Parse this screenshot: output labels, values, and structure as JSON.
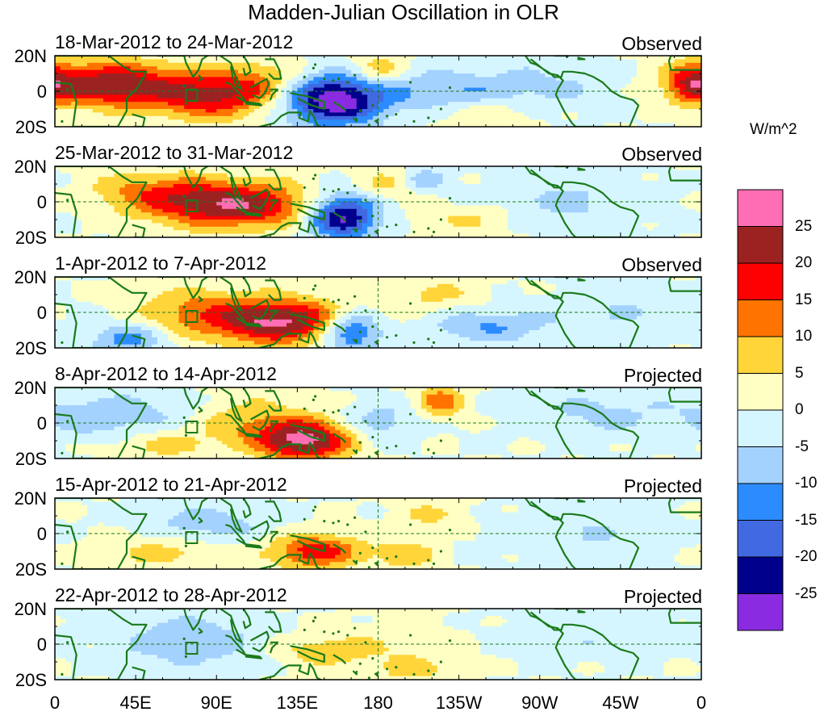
{
  "figure": {
    "title": "Madden-Julian Oscillation in OLR",
    "units": "W/m^2"
  },
  "colors": {
    "land_outline": "#1a7a1a",
    "zero_line": "#1a7a1a"
  },
  "chart_data": {
    "type": "heatmap",
    "title": "Madden-Julian Oscillation in OLR",
    "x_tick_labels": [
      "0",
      "45E",
      "90E",
      "135E",
      "180",
      "135W",
      "90W",
      "45W",
      "0"
    ],
    "y_tick_labels": [
      "20N",
      "0",
      "20S"
    ],
    "xlim_degrees_east": [
      0,
      360
    ],
    "ylim_degrees": [
      -20,
      20
    ],
    "colorbar": {
      "labels": [
        "25",
        "20",
        "15",
        "10",
        "5",
        "0",
        "-5",
        "-10",
        "-15",
        "-20",
        "-25"
      ],
      "colors": [
        "#ff6eb4",
        "#9c2222",
        "#ff0000",
        "#ff7300",
        "#ffd53a",
        "#ffffc4",
        "#d6f6ff",
        "#a4d2ff",
        "#2c8cff",
        "#4169e1",
        "#00008c",
        "#8a2be2"
      ]
    },
    "panels": [
      {
        "date_range": "18-Mar-2012 to 24-Mar-2012",
        "status": "Observed",
        "anomalies": [
          {
            "lon": 30,
            "lat": 4,
            "amp": 24,
            "slon": 28,
            "slat": 9
          },
          {
            "lon": 85,
            "lat": -3,
            "amp": 18,
            "slon": 22,
            "slat": 9
          },
          {
            "lon": 115,
            "lat": 4,
            "amp": 10,
            "slon": 18,
            "slat": 10
          },
          {
            "lon": 155,
            "lat": -5,
            "amp": -30,
            "slon": 20,
            "slat": 10
          },
          {
            "lon": 180,
            "lat": 12,
            "amp": 10,
            "slon": 10,
            "slat": 6
          },
          {
            "lon": 215,
            "lat": 0,
            "amp": -9,
            "slon": 25,
            "slat": 8
          },
          {
            "lon": 270,
            "lat": 2,
            "amp": -6,
            "slon": 30,
            "slat": 10
          },
          {
            "lon": 355,
            "lat": 5,
            "amp": 14,
            "slon": 10,
            "slat": 8
          },
          {
            "lon": 240,
            "lat": -12,
            "amp": 6,
            "slon": 20,
            "slat": 6
          }
        ]
      },
      {
        "date_range": "25-Mar-2012 to 31-Mar-2012",
        "status": "Observed",
        "anomalies": [
          {
            "lon": 100,
            "lat": -2,
            "amp": 24,
            "slon": 32,
            "slat": 9
          },
          {
            "lon": 55,
            "lat": 6,
            "amp": 10,
            "slon": 25,
            "slat": 8
          },
          {
            "lon": 160,
            "lat": -8,
            "amp": -28,
            "slon": 14,
            "slat": 9
          },
          {
            "lon": 190,
            "lat": 10,
            "amp": 8,
            "slon": 15,
            "slat": 6
          },
          {
            "lon": 205,
            "lat": 12,
            "amp": -12,
            "slon": 10,
            "slat": 5
          },
          {
            "lon": 290,
            "lat": 0,
            "amp": -6,
            "slon": 35,
            "slat": 10
          },
          {
            "lon": 230,
            "lat": -10,
            "amp": 6,
            "slon": 20,
            "slat": 6
          }
        ]
      },
      {
        "date_range": "1-Apr-2012 to 7-Apr-2012",
        "status": "Observed",
        "anomalies": [
          {
            "lon": 125,
            "lat": -5,
            "amp": 26,
            "slon": 30,
            "slat": 9
          },
          {
            "lon": 75,
            "lat": 2,
            "amp": 8,
            "slon": 22,
            "slat": 9
          },
          {
            "lon": 40,
            "lat": -15,
            "amp": -12,
            "slon": 15,
            "slat": 6
          },
          {
            "lon": 165,
            "lat": -10,
            "amp": -22,
            "slon": 12,
            "slat": 8
          },
          {
            "lon": 210,
            "lat": 10,
            "amp": 6,
            "slon": 20,
            "slat": 7
          },
          {
            "lon": 240,
            "lat": -8,
            "amp": -10,
            "slon": 25,
            "slat": 7
          },
          {
            "lon": 310,
            "lat": 0,
            "amp": -5,
            "slon": 25,
            "slat": 10
          }
        ]
      },
      {
        "date_range": "8-Apr-2012 to 14-Apr-2012",
        "status": "Projected",
        "anomalies": [
          {
            "lon": 140,
            "lat": -10,
            "amp": 26,
            "slon": 18,
            "slat": 8
          },
          {
            "lon": 110,
            "lat": 0,
            "amp": 9,
            "slon": 22,
            "slat": 10
          },
          {
            "lon": 30,
            "lat": 4,
            "amp": -9,
            "slon": 30,
            "slat": 9
          },
          {
            "lon": 215,
            "lat": 12,
            "amp": 14,
            "slon": 9,
            "slat": 6
          },
          {
            "lon": 60,
            "lat": -12,
            "amp": 7,
            "slon": 20,
            "slat": 6
          },
          {
            "lon": 180,
            "lat": 0,
            "amp": -8,
            "slon": 15,
            "slat": 8
          },
          {
            "lon": 300,
            "lat": 5,
            "amp": -6,
            "slon": 30,
            "slat": 10
          }
        ]
      },
      {
        "date_range": "15-Apr-2012 to 21-Apr-2012",
        "status": "Projected",
        "anomalies": [
          {
            "lon": 145,
            "lat": -10,
            "amp": 18,
            "slon": 18,
            "slat": 7
          },
          {
            "lon": 60,
            "lat": -10,
            "amp": 7,
            "slon": 25,
            "slat": 7
          },
          {
            "lon": 85,
            "lat": 5,
            "amp": -8,
            "slon": 25,
            "slat": 8
          },
          {
            "lon": 195,
            "lat": -12,
            "amp": 9,
            "slon": 12,
            "slat": 6
          },
          {
            "lon": 210,
            "lat": 10,
            "amp": 6,
            "slon": 15,
            "slat": 6
          },
          {
            "lon": 290,
            "lat": 0,
            "amp": -5,
            "slon": 35,
            "slat": 10
          }
        ]
      },
      {
        "date_range": "22-Apr-2012 to 28-Apr-2012",
        "status": "Projected",
        "anomalies": [
          {
            "lon": 75,
            "lat": 2,
            "amp": -10,
            "slon": 25,
            "slat": 10
          },
          {
            "lon": 150,
            "lat": -4,
            "amp": 8,
            "slon": 18,
            "slat": 6
          },
          {
            "lon": 195,
            "lat": 0,
            "amp": 4,
            "slon": 25,
            "slat": 10
          },
          {
            "lon": 200,
            "lat": -15,
            "amp": 6,
            "slon": 15,
            "slat": 5
          },
          {
            "lon": 300,
            "lat": 5,
            "amp": -4,
            "slon": 40,
            "slat": 10
          }
        ]
      }
    ]
  }
}
